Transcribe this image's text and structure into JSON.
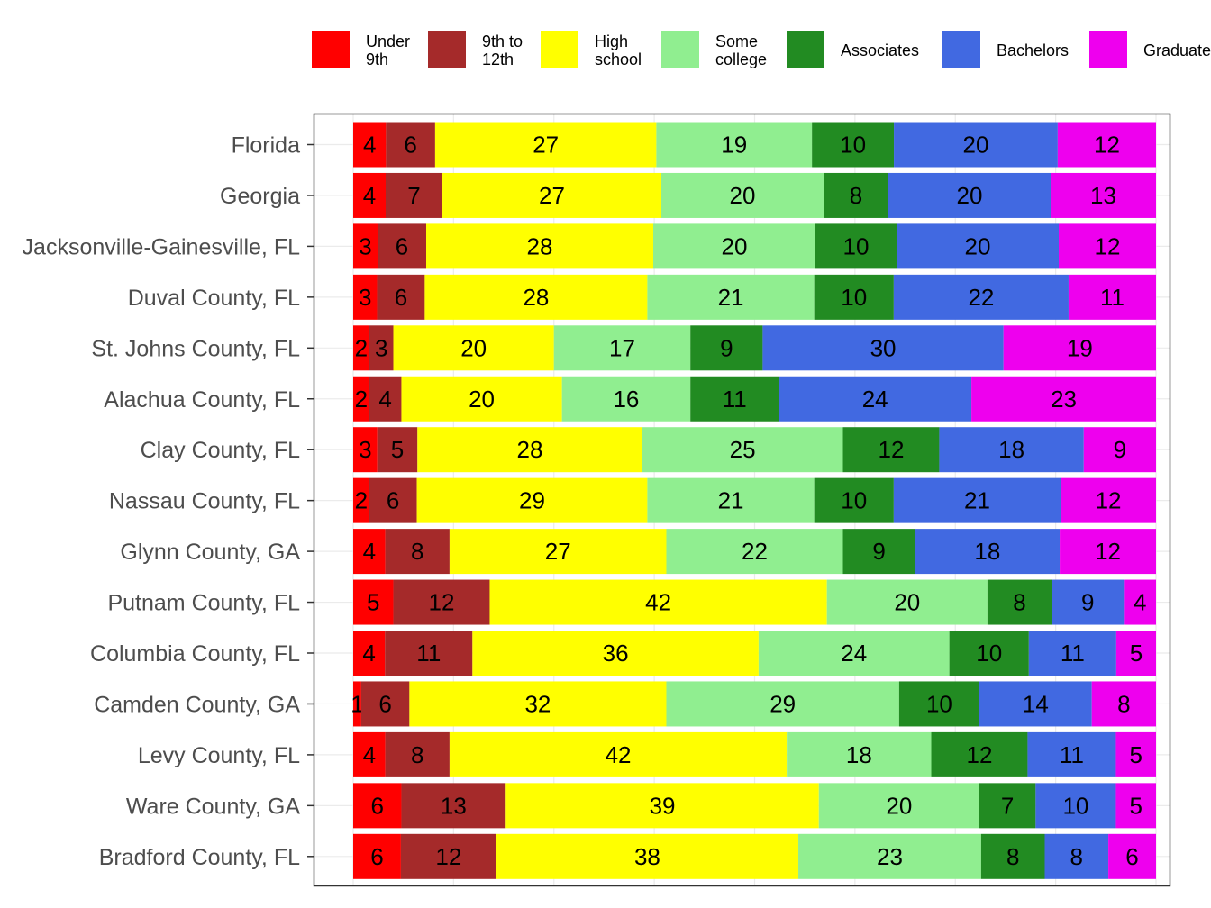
{
  "chart_data": {
    "type": "bar",
    "orientation": "horizontal",
    "stacked": true,
    "title": "",
    "xlabel": "",
    "ylabel": "",
    "xlim": [
      0,
      100
    ],
    "grid": true,
    "legend_position": "top",
    "categories": [
      "Florida",
      "Georgia",
      "Jacksonville-Gainesville, FL",
      "Duval County, FL",
      "St. Johns County, FL",
      "Alachua County, FL",
      "Clay County, FL",
      "Nassau County, FL",
      "Glynn County, GA",
      "Putnam County, FL",
      "Columbia County, FL",
      "Camden County, GA",
      "Levy County, FL",
      "Ware County, GA",
      "Bradford County, FL"
    ],
    "series": [
      {
        "name": "Under 9th",
        "legend_lines": [
          "Under",
          "9th"
        ],
        "color": "#FF0000",
        "values": [
          4,
          4,
          3,
          3,
          2,
          2,
          3,
          2,
          4,
          5,
          4,
          1,
          4,
          6,
          6
        ]
      },
      {
        "name": "9th to 12th",
        "legend_lines": [
          "9th to",
          "12th"
        ],
        "color": "#A52A2A",
        "values": [
          6,
          7,
          6,
          6,
          3,
          4,
          5,
          6,
          8,
          12,
          11,
          6,
          8,
          13,
          12
        ]
      },
      {
        "name": "High school",
        "legend_lines": [
          "High",
          "school"
        ],
        "color": "#FFFF00",
        "values": [
          27,
          27,
          28,
          28,
          20,
          20,
          28,
          29,
          27,
          42,
          36,
          32,
          42,
          39,
          38
        ]
      },
      {
        "name": "Some college",
        "legend_lines": [
          "Some",
          "college"
        ],
        "color": "#90EE90",
        "values": [
          19,
          20,
          20,
          21,
          17,
          16,
          25,
          21,
          22,
          20,
          24,
          29,
          18,
          20,
          23
        ]
      },
      {
        "name": "Associates",
        "legend_lines": [
          "Associates"
        ],
        "color": "#228B22",
        "values": [
          10,
          8,
          10,
          10,
          9,
          11,
          12,
          10,
          9,
          8,
          10,
          10,
          12,
          7,
          8
        ]
      },
      {
        "name": "Bachelors",
        "legend_lines": [
          "Bachelors"
        ],
        "color": "#4169E1",
        "values": [
          20,
          20,
          20,
          22,
          30,
          24,
          18,
          21,
          18,
          9,
          11,
          14,
          11,
          10,
          8
        ]
      },
      {
        "name": "Graduate",
        "legend_lines": [
          "Graduate"
        ],
        "color": "#EE00EE",
        "values": [
          12,
          13,
          12,
          11,
          19,
          23,
          9,
          12,
          12,
          4,
          5,
          8,
          5,
          5,
          6
        ]
      }
    ]
  }
}
